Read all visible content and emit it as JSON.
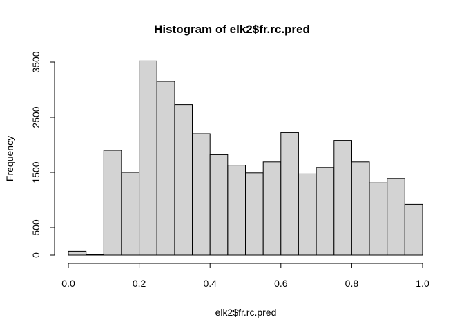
{
  "chart_data": {
    "type": "bar",
    "title": "Histogram of elk2$fr.rc.pred",
    "xlabel": "elk2$fr.rc.pred",
    "ylabel": "Frequency",
    "bin_width": 0.05,
    "bins": [
      {
        "from": 0.0,
        "to": 0.05,
        "count": 70
      },
      {
        "from": 0.05,
        "to": 0.1,
        "count": 10
      },
      {
        "from": 0.1,
        "to": 0.15,
        "count": 1900
      },
      {
        "from": 0.15,
        "to": 0.2,
        "count": 1500
      },
      {
        "from": 0.2,
        "to": 0.25,
        "count": 3520
      },
      {
        "from": 0.25,
        "to": 0.3,
        "count": 3150
      },
      {
        "from": 0.3,
        "to": 0.35,
        "count": 2730
      },
      {
        "from": 0.35,
        "to": 0.4,
        "count": 2200
      },
      {
        "from": 0.4,
        "to": 0.45,
        "count": 1820
      },
      {
        "from": 0.45,
        "to": 0.5,
        "count": 1630
      },
      {
        "from": 0.5,
        "to": 0.55,
        "count": 1490
      },
      {
        "from": 0.55,
        "to": 0.6,
        "count": 1690
      },
      {
        "from": 0.6,
        "to": 0.65,
        "count": 2220
      },
      {
        "from": 0.65,
        "to": 0.7,
        "count": 1470
      },
      {
        "from": 0.7,
        "to": 0.75,
        "count": 1590
      },
      {
        "from": 0.75,
        "to": 0.8,
        "count": 2080
      },
      {
        "from": 0.8,
        "to": 0.85,
        "count": 1690
      },
      {
        "from": 0.85,
        "to": 0.9,
        "count": 1310
      },
      {
        "from": 0.9,
        "to": 0.95,
        "count": 1390
      },
      {
        "from": 0.95,
        "to": 1.0,
        "count": 920
      }
    ],
    "xlim": [
      0,
      1
    ],
    "ylim": [
      0,
      3500
    ],
    "x_ticks": [
      0.0,
      0.2,
      0.4,
      0.6,
      0.8,
      1.0
    ],
    "x_tick_labels": [
      "0.0",
      "0.2",
      "0.4",
      "0.6",
      "0.8",
      "1.0"
    ],
    "y_ticks": [
      0,
      500,
      1500,
      2500,
      3500
    ],
    "y_tick_labels": [
      "0",
      "500",
      "1500",
      "2500",
      "3500"
    ],
    "bar_fill": "#d3d3d3",
    "bar_stroke": "#000000",
    "grid": false
  }
}
